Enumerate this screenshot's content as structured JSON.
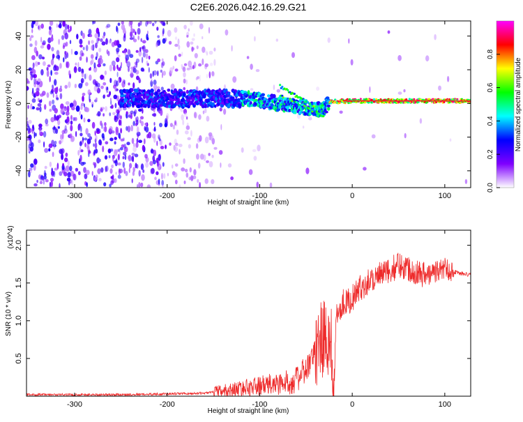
{
  "chart_data": [
    {
      "type": "heatmap",
      "title": "C2E6.2026.042.16.29.G21",
      "xlabel": "Height of straight line (km)",
      "ylabel": "Frequency (Hz)",
      "xlim": [
        -352,
        128
      ],
      "ylim": [
        -50,
        49
      ],
      "x_ticks": [
        -300,
        -200,
        -100,
        0,
        100
      ],
      "y_ticks": [
        -40,
        -20,
        0,
        20,
        40
      ],
      "colorbar": {
        "label": "Normalized spectral amplitude",
        "range": [
          0,
          1
        ],
        "ticks": [
          "0.0",
          "0.2",
          "0.4",
          "0.6",
          "0.8"
        ],
        "colors": [
          "#ffffff",
          "#7f00ff",
          "#0000ff",
          "#00ffff",
          "#00ff00",
          "#ffff00",
          "#ff0000",
          "#ff00ff"
        ]
      },
      "tone_ridge": [
        {
          "x": -250,
          "y": 3
        },
        {
          "x": -200,
          "y": 3
        },
        {
          "x": -160,
          "y": 3
        },
        {
          "x": -120,
          "y": 3
        },
        {
          "x": -100,
          "y": 2
        },
        {
          "x": -80,
          "y": 0
        },
        {
          "x": -60,
          "y": -2
        },
        {
          "x": -45,
          "y": -3
        },
        {
          "x": -32,
          "y": -4
        },
        {
          "x": -25,
          "y": 1
        },
        {
          "x": 0,
          "y": 1.5
        },
        {
          "x": 50,
          "y": 1.5
        },
        {
          "x": 100,
          "y": 1.5
        },
        {
          "x": 128,
          "y": 1.5
        }
      ],
      "grid": false,
      "legend": "colorbar right"
    },
    {
      "type": "line",
      "xlabel": "Height of straight line (km)",
      "ylabel": "SNR (10 * v/v)",
      "y_multiplier": "(x10^4)",
      "xlim": [
        -352,
        128
      ],
      "ylim": [
        0,
        2.2
      ],
      "x_ticks": [
        -300,
        -200,
        -100,
        0,
        100
      ],
      "y_ticks": [
        "0.5",
        "1.0",
        "1.5",
        "2.0"
      ],
      "color": "#ee2a2a",
      "series": [
        {
          "x": [
            -352,
            -300,
            -250,
            -200,
            -160,
            -130,
            -110,
            -90,
            -70,
            -60,
            -50,
            -40,
            -35,
            -30,
            -25,
            -22,
            -20,
            -18,
            -15,
            -10,
            -5,
            0,
            10,
            20,
            30,
            40,
            50,
            60,
            70,
            80,
            90,
            100,
            110,
            120,
            128
          ],
          "y": [
            0.02,
            0.02,
            0.02,
            0.03,
            0.04,
            0.08,
            0.12,
            0.15,
            0.18,
            0.22,
            0.35,
            0.55,
            0.85,
            0.95,
            0.9,
            0.6,
            0.05,
            1.05,
            1.15,
            1.25,
            1.25,
            1.3,
            1.45,
            1.55,
            1.6,
            1.65,
            1.75,
            1.7,
            1.65,
            1.6,
            1.65,
            1.7,
            1.65,
            1.62,
            1.6
          ]
        }
      ]
    }
  ]
}
